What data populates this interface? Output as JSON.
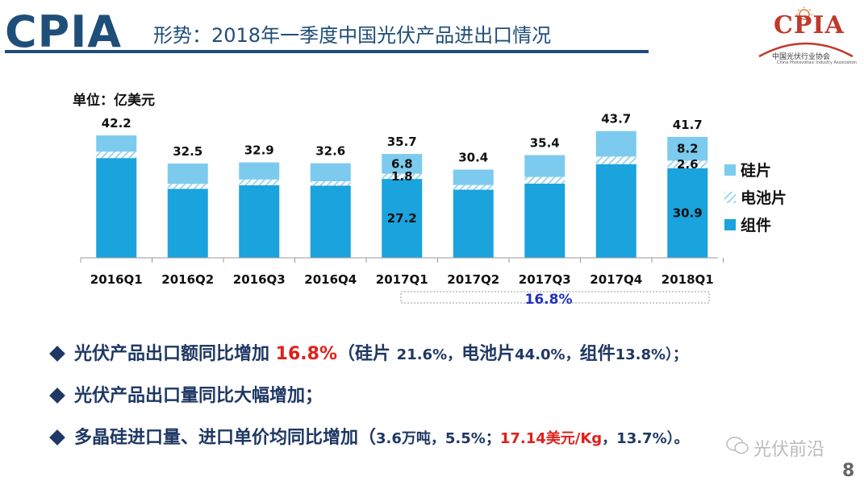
{
  "header": {
    "brand": "CPIA",
    "title": "形势：2018年一季度中国光伏产品进出口情况",
    "logo_word": "CPIA",
    "logo_cn": "中国光伏行业协会",
    "logo_en": "China Photovoltaic Industry Association"
  },
  "chart_data": {
    "type": "bar",
    "stacked": true,
    "unit_label": "单位：亿美元",
    "categories": [
      "2016Q1",
      "2016Q2",
      "2016Q3",
      "2016Q4",
      "2017Q1",
      "2017Q2",
      "2017Q3",
      "2017Q4",
      "2018Q1"
    ],
    "totals": [
      "42.2",
      "32.5",
      "32.9",
      "32.6",
      "35.7",
      "30.4",
      "35.4",
      "43.7",
      "41.7"
    ],
    "total_values": [
      42.2,
      32.5,
      32.9,
      32.6,
      35.7,
      30.4,
      35.4,
      43.7,
      41.7
    ],
    "series": [
      {
        "name": "组件",
        "values": [
          34.4,
          23.8,
          25.0,
          24.9,
          27.2,
          23.5,
          25.6,
          32.3,
          30.9
        ],
        "color": "#1aa3dc"
      },
      {
        "name": "电池片",
        "values": [
          2.2,
          1.7,
          2.0,
          1.5,
          1.8,
          1.6,
          2.3,
          2.6,
          2.6
        ],
        "color": "#9fd6ee",
        "pattern": "hatch"
      },
      {
        "name": "硅片",
        "values": [
          5.6,
          7.0,
          5.9,
          6.2,
          6.8,
          5.3,
          7.5,
          8.8,
          8.2
        ],
        "color": "#7ccbee"
      }
    ],
    "data_labels": [
      {
        "category": "2017Q1",
        "series": "硅片",
        "text": "6.8"
      },
      {
        "category": "2017Q1",
        "series": "电池片",
        "text": "1.8"
      },
      {
        "category": "2017Q1",
        "series": "组件",
        "text": "27.2"
      },
      {
        "category": "2018Q1",
        "series": "硅片",
        "text": "8.2"
      },
      {
        "category": "2018Q1",
        "series": "电池片",
        "text": "2.6"
      },
      {
        "category": "2018Q1",
        "series": "组件",
        "text": "30.9"
      }
    ],
    "growth_annotation": "16.8%",
    "ylim": [
      0,
      50
    ],
    "legend_position": "right",
    "grid": false
  },
  "bullets": [
    {
      "a": "光伏产品出口额同比增加 ",
      "b": "16.8%",
      "c": "（硅片 ",
      "d": "21.6%，",
      "e": "电池片",
      "f": "44.0%，",
      "g": "组件",
      "h": "13.8%）；"
    },
    {
      "a": "光伏产品出口量同比大幅增加；"
    },
    {
      "a": "多晶硅进口量、进口单价均同比增加（",
      "b": "3.6万吨，5.5%；",
      "c": "17.14美元/Kg",
      "d": "，13.7%）。"
    }
  ],
  "watermark": "光伏前沿",
  "page_number": "8",
  "colors": {
    "title": "#1f4e79",
    "accent_red": "#e0201b",
    "module": "#1aa3dc",
    "cell": "#9fd6ee",
    "wafer": "#7ccbee"
  }
}
